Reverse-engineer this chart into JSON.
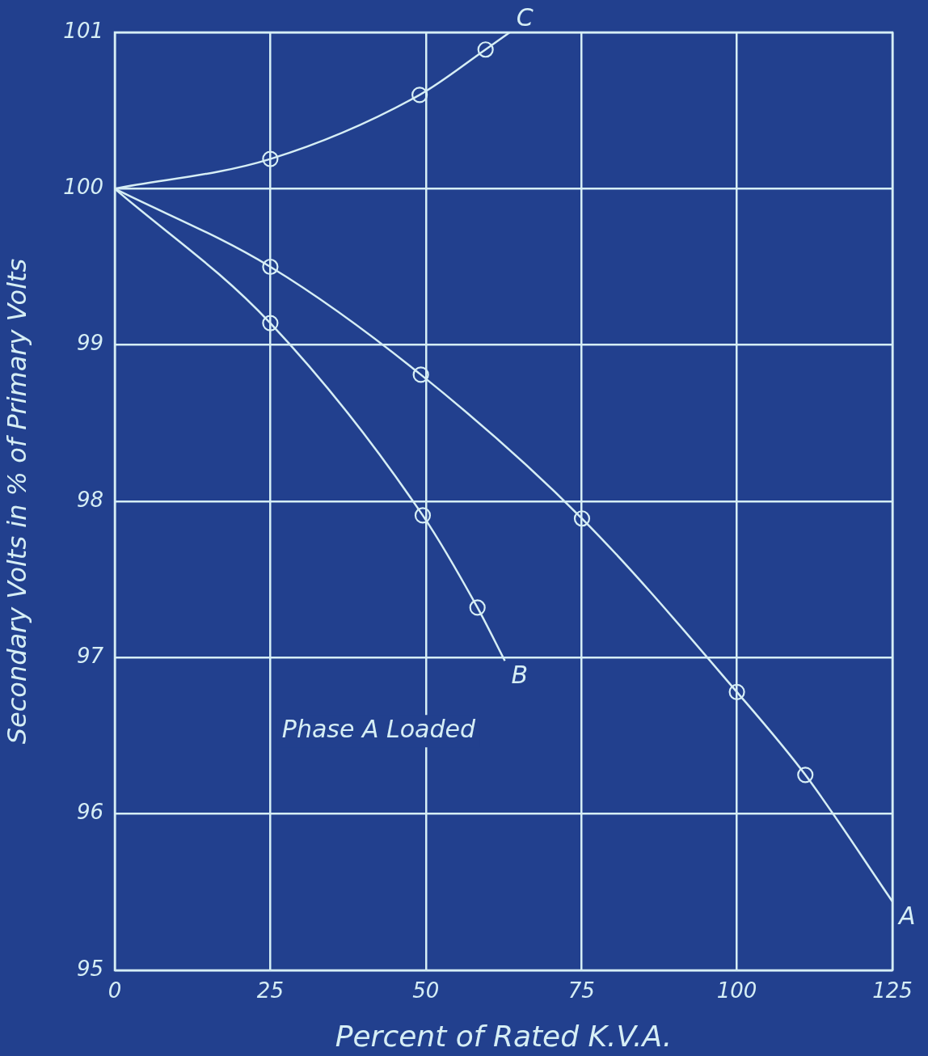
{
  "chart_data": {
    "type": "line",
    "xlabel": "Percent of Rated K.V.A.",
    "ylabel": "Secondary Volts in % of Primary Volts",
    "xlim": [
      0,
      125
    ],
    "xticks": [
      0,
      25,
      50,
      75,
      100,
      125
    ],
    "ylim": [
      95,
      101
    ],
    "yticks": [
      95,
      96,
      97,
      98,
      99,
      100,
      101
    ],
    "grid": true,
    "legend": false,
    "line_style": "solid",
    "annotations": [
      "Phase A Loaded"
    ],
    "series": [
      {
        "name": "A",
        "type": "line",
        "marker": "none",
        "color": "#d6eef5",
        "x": [
          0,
          25,
          49.2,
          75.1,
          100,
          111,
          125
        ],
        "values": [
          100,
          99.5,
          98.81,
          97.89,
          96.78,
          96.25,
          95.44
        ]
      },
      {
        "type": "scatter",
        "marker": "circle",
        "color": "#d6eef5",
        "x": [
          25,
          49.2,
          75.1,
          100,
          111
        ],
        "values": [
          99.5,
          98.81,
          97.89,
          96.78,
          96.25
        ]
      },
      {
        "name": "B",
        "type": "line",
        "marker": "none",
        "color": "#d6eef5",
        "x": [
          0,
          25,
          49.5,
          58.3,
          62.7
        ],
        "values": [
          100,
          99.14,
          97.91,
          97.32,
          96.98
        ]
      },
      {
        "type": "scatter",
        "marker": "circle",
        "color": "#d6eef5",
        "x": [
          25,
          49.5,
          58.3
        ],
        "values": [
          99.14,
          97.91,
          97.32
        ]
      },
      {
        "name": "C",
        "type": "line",
        "marker": "none",
        "color": "#d6eef5",
        "x": [
          0,
          25,
          49,
          59.6,
          63.5
        ],
        "values": [
          100,
          100.19,
          100.6,
          100.89,
          101
        ]
      },
      {
        "type": "scatter",
        "marker": "circle",
        "color": "#d6eef5",
        "x": [
          25,
          49,
          59.6
        ],
        "values": [
          100.19,
          100.6,
          100.89
        ]
      }
    ]
  }
}
